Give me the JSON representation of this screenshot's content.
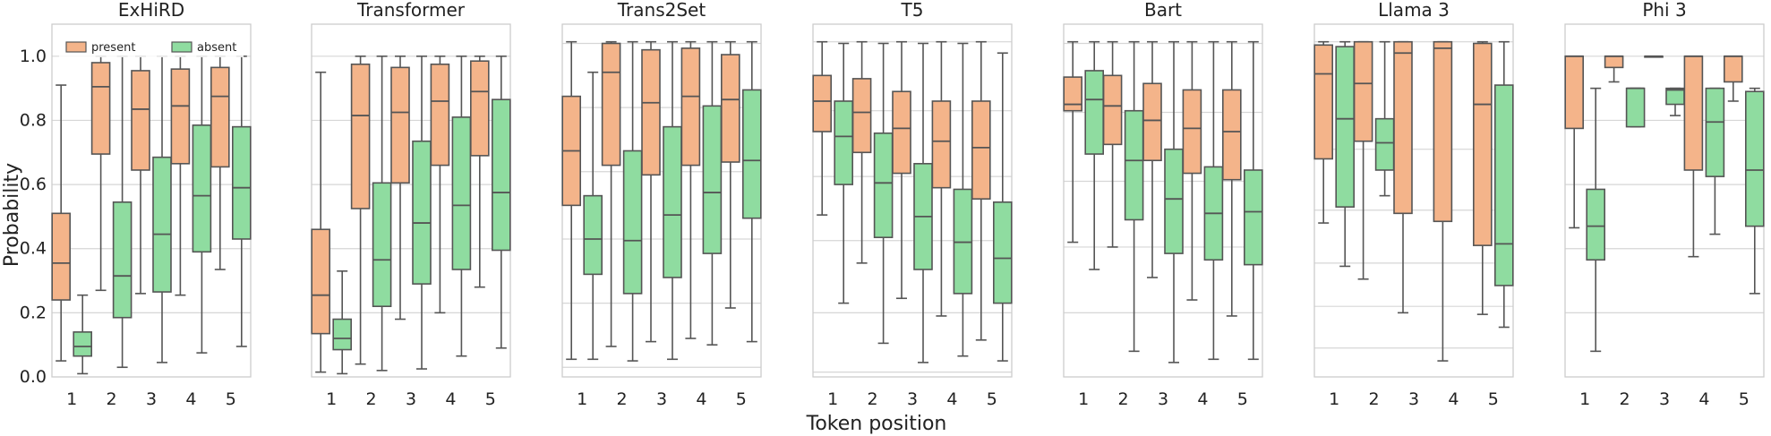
{
  "figure": {
    "xlabel": "Token position",
    "ylabel": "Probability"
  },
  "legend": {
    "placement": "top-left",
    "entries": [
      {
        "label": "present",
        "color": "#f4b48a"
      },
      {
        "label": "absent",
        "color": "#8fdca0"
      }
    ]
  },
  "chart_data": [
    {
      "type": "box",
      "title": "ExHiRD",
      "categories": [
        "1",
        "2",
        "3",
        "4",
        "5"
      ],
      "ylim": [
        0,
        1.1
      ],
      "yticks": [
        "0.0",
        "0.2",
        "0.4",
        "0.6",
        "0.8",
        "1.0"
      ],
      "gridlines": [
        0.2,
        0.4,
        0.6,
        0.8,
        1.0
      ],
      "series": [
        {
          "name": "present",
          "color": "#f4b48a",
          "boxes": [
            {
              "whislo": 0.05,
              "q1": 0.24,
              "med": 0.355,
              "q3": 0.51,
              "whishi": 0.91
            },
            {
              "whislo": 0.27,
              "q1": 0.695,
              "med": 0.905,
              "q3": 0.98,
              "whishi": 1.0
            },
            {
              "whislo": 0.26,
              "q1": 0.645,
              "med": 0.835,
              "q3": 0.955,
              "whishi": 1.0
            },
            {
              "whislo": 0.255,
              "q1": 0.665,
              "med": 0.845,
              "q3": 0.96,
              "whishi": 1.0
            },
            {
              "whislo": 0.335,
              "q1": 0.655,
              "med": 0.875,
              "q3": 0.965,
              "whishi": 1.0
            }
          ]
        },
        {
          "name": "absent",
          "color": "#8fdca0",
          "boxes": [
            {
              "whislo": 0.01,
              "q1": 0.065,
              "med": 0.095,
              "q3": 0.14,
              "whishi": 0.255
            },
            {
              "whislo": 0.03,
              "q1": 0.185,
              "med": 0.315,
              "q3": 0.545,
              "whishi": 1.0
            },
            {
              "whislo": 0.045,
              "q1": 0.265,
              "med": 0.445,
              "q3": 0.685,
              "whishi": 1.0
            },
            {
              "whislo": 0.075,
              "q1": 0.39,
              "med": 0.565,
              "q3": 0.785,
              "whishi": 1.0
            },
            {
              "whislo": 0.095,
              "q1": 0.43,
              "med": 0.59,
              "q3": 0.78,
              "whishi": 1.0
            }
          ]
        }
      ]
    },
    {
      "type": "box",
      "title": "Transformer",
      "categories": [
        "1",
        "2",
        "3",
        "4",
        "5"
      ],
      "ylim": [
        0,
        1.1
      ],
      "gridlines": [
        0.2,
        0.4,
        0.6,
        0.8,
        1.0
      ],
      "series": [
        {
          "name": "present",
          "color": "#f4b48a",
          "boxes": [
            {
              "whislo": 0.015,
              "q1": 0.135,
              "med": 0.255,
              "q3": 0.46,
              "whishi": 0.95
            },
            {
              "whislo": 0.04,
              "q1": 0.525,
              "med": 0.815,
              "q3": 0.975,
              "whishi": 1.0
            },
            {
              "whislo": 0.18,
              "q1": 0.605,
              "med": 0.825,
              "q3": 0.965,
              "whishi": 1.0
            },
            {
              "whislo": 0.2,
              "q1": 0.66,
              "med": 0.86,
              "q3": 0.975,
              "whishi": 1.0
            },
            {
              "whislo": 0.28,
              "q1": 0.69,
              "med": 0.89,
              "q3": 0.985,
              "whishi": 1.0
            }
          ]
        },
        {
          "name": "absent",
          "color": "#8fdca0",
          "boxes": [
            {
              "whislo": 0.01,
              "q1": 0.085,
              "med": 0.12,
              "q3": 0.18,
              "whishi": 0.33
            },
            {
              "whislo": 0.02,
              "q1": 0.22,
              "med": 0.365,
              "q3": 0.605,
              "whishi": 1.0
            },
            {
              "whislo": 0.025,
              "q1": 0.29,
              "med": 0.48,
              "q3": 0.735,
              "whishi": 1.0
            },
            {
              "whislo": 0.065,
              "q1": 0.335,
              "med": 0.535,
              "q3": 0.81,
              "whishi": 1.0
            },
            {
              "whislo": 0.09,
              "q1": 0.395,
              "med": 0.575,
              "q3": 0.865,
              "whishi": 1.0
            }
          ]
        }
      ]
    },
    {
      "type": "box",
      "title": "Trans2Set",
      "categories": [
        "1",
        "2",
        "3",
        "4",
        "5"
      ],
      "ylim": [
        0,
        1.1
      ],
      "gridlines": [
        0.03,
        0.23,
        0.43,
        0.64,
        0.84,
        1.04
      ],
      "series": [
        {
          "name": "present",
          "color": "#f4b48a",
          "boxes": [
            {
              "whislo": 0.055,
              "q1": 0.535,
              "med": 0.705,
              "q3": 0.875,
              "whishi": 1.045
            },
            {
              "whislo": 0.095,
              "q1": 0.66,
              "med": 0.95,
              "q3": 1.04,
              "whishi": 1.045
            },
            {
              "whislo": 0.11,
              "q1": 0.63,
              "med": 0.855,
              "q3": 1.02,
              "whishi": 1.045
            },
            {
              "whislo": 0.12,
              "q1": 0.66,
              "med": 0.875,
              "q3": 1.025,
              "whishi": 1.045
            },
            {
              "whislo": 0.215,
              "q1": 0.67,
              "med": 0.865,
              "q3": 1.005,
              "whishi": 1.045
            }
          ]
        },
        {
          "name": "absent",
          "color": "#8fdca0",
          "boxes": [
            {
              "whislo": 0.055,
              "q1": 0.32,
              "med": 0.43,
              "q3": 0.565,
              "whishi": 0.95
            },
            {
              "whislo": 0.05,
              "q1": 0.26,
              "med": 0.425,
              "q3": 0.705,
              "whishi": 1.045
            },
            {
              "whislo": 0.055,
              "q1": 0.31,
              "med": 0.505,
              "q3": 0.78,
              "whishi": 1.045
            },
            {
              "whislo": 0.1,
              "q1": 0.385,
              "med": 0.575,
              "q3": 0.845,
              "whishi": 1.045
            },
            {
              "whislo": 0.11,
              "q1": 0.495,
              "med": 0.675,
              "q3": 0.895,
              "whishi": 1.045
            }
          ]
        }
      ]
    },
    {
      "type": "box",
      "title": "T5",
      "categories": [
        "1",
        "2",
        "3",
        "4",
        "5"
      ],
      "ylim": [
        0,
        1.1
      ],
      "gridlines": [
        0.015,
        0.2,
        0.425,
        0.625,
        0.83,
        1.045
      ],
      "series": [
        {
          "name": "present",
          "color": "#f4b48a",
          "boxes": [
            {
              "whislo": 0.505,
              "q1": 0.765,
              "med": 0.86,
              "q3": 0.94,
              "whishi": 1.045
            },
            {
              "whislo": 0.355,
              "q1": 0.7,
              "med": 0.825,
              "q3": 0.93,
              "whishi": 1.045
            },
            {
              "whislo": 0.245,
              "q1": 0.635,
              "med": 0.775,
              "q3": 0.89,
              "whishi": 1.045
            },
            {
              "whislo": 0.19,
              "q1": 0.59,
              "med": 0.735,
              "q3": 0.86,
              "whishi": 1.045
            },
            {
              "whislo": 0.115,
              "q1": 0.555,
              "med": 0.715,
              "q3": 0.86,
              "whishi": 1.045
            }
          ]
        },
        {
          "name": "absent",
          "color": "#8fdca0",
          "boxes": [
            {
              "whislo": 0.23,
              "q1": 0.6,
              "med": 0.75,
              "q3": 0.86,
              "whishi": 1.04
            },
            {
              "whislo": 0.105,
              "q1": 0.435,
              "med": 0.605,
              "q3": 0.76,
              "whishi": 1.04
            },
            {
              "whislo": 0.045,
              "q1": 0.335,
              "med": 0.5,
              "q3": 0.665,
              "whishi": 1.04
            },
            {
              "whislo": 0.065,
              "q1": 0.26,
              "med": 0.42,
              "q3": 0.585,
              "whishi": 1.04
            },
            {
              "whislo": 0.05,
              "q1": 0.23,
              "med": 0.37,
              "q3": 0.545,
              "whishi": 1.01
            }
          ]
        }
      ]
    },
    {
      "type": "box",
      "title": "Bart",
      "categories": [
        "1",
        "2",
        "3",
        "4",
        "5"
      ],
      "ylim": [
        0,
        1.1
      ],
      "gridlines": [
        0.2,
        0.405,
        0.61,
        0.825,
        1.04
      ],
      "series": [
        {
          "name": "present",
          "color": "#f4b48a",
          "boxes": [
            {
              "whislo": 0.42,
              "q1": 0.83,
              "med": 0.85,
              "q3": 0.935,
              "whishi": 1.045
            },
            {
              "whislo": 0.405,
              "q1": 0.725,
              "med": 0.845,
              "q3": 0.94,
              "whishi": 1.045
            },
            {
              "whislo": 0.31,
              "q1": 0.675,
              "med": 0.8,
              "q3": 0.915,
              "whishi": 1.045
            },
            {
              "whislo": 0.24,
              "q1": 0.635,
              "med": 0.775,
              "q3": 0.895,
              "whishi": 1.045
            },
            {
              "whislo": 0.19,
              "q1": 0.615,
              "med": 0.765,
              "q3": 0.895,
              "whishi": 1.045
            }
          ]
        },
        {
          "name": "absent",
          "color": "#8fdca0",
          "boxes": [
            {
              "whislo": 0.335,
              "q1": 0.695,
              "med": 0.865,
              "q3": 0.955,
              "whishi": 1.045
            },
            {
              "whislo": 0.08,
              "q1": 0.49,
              "med": 0.675,
              "q3": 0.83,
              "whishi": 1.045
            },
            {
              "whislo": 0.045,
              "q1": 0.385,
              "med": 0.555,
              "q3": 0.71,
              "whishi": 1.045
            },
            {
              "whislo": 0.055,
              "q1": 0.365,
              "med": 0.51,
              "q3": 0.655,
              "whishi": 1.045
            },
            {
              "whislo": 0.055,
              "q1": 0.35,
              "med": 0.515,
              "q3": 0.645,
              "whishi": 1.045
            }
          ]
        }
      ]
    },
    {
      "type": "box",
      "title": "Llama 3",
      "categories": [
        "1",
        "2",
        "3",
        "4",
        "5"
      ],
      "ylim": [
        0,
        1.1
      ],
      "gridlines": [
        0.09,
        0.22,
        0.355,
        0.52,
        0.71,
        1.045
      ],
      "series": [
        {
          "name": "present",
          "color": "#f4b48a",
          "boxes": [
            {
              "whislo": 0.48,
              "q1": 0.68,
              "med": 0.945,
              "q3": 1.035,
              "whishi": 1.045
            },
            {
              "whislo": 0.305,
              "q1": 0.735,
              "med": 0.915,
              "q3": 1.045,
              "whishi": 1.045
            },
            {
              "whislo": 0.2,
              "q1": 0.51,
              "med": 1.01,
              "q3": 1.045,
              "whishi": 1.045
            },
            {
              "whislo": 0.05,
              "q1": 0.485,
              "med": 1.025,
              "q3": 1.045,
              "whishi": 1.045
            },
            {
              "whislo": 0.195,
              "q1": 0.41,
              "med": 0.85,
              "q3": 1.04,
              "whishi": 1.045
            }
          ]
        },
        {
          "name": "absent",
          "color": "#8fdca0",
          "boxes": [
            {
              "whislo": 0.345,
              "q1": 0.53,
              "med": 0.805,
              "q3": 1.03,
              "whishi": 1.045
            },
            {
              "whislo": 0.565,
              "q1": 0.645,
              "med": 0.73,
              "q3": 0.805,
              "whishi": 1.045
            },
            {
              "whislo": 0.155,
              "q1": 0.285,
              "med": 0.415,
              "q3": 0.91,
              "whishi": 1.045
            }
          ]
        }
      ],
      "absent_positions": [
        "1",
        "2",
        "5"
      ]
    },
    {
      "type": "box",
      "title": "Phi 3",
      "categories": [
        "1",
        "2",
        "3",
        "4",
        "5"
      ],
      "ylim": [
        0,
        1.1
      ],
      "gridlines": [
        0.2,
        0.4,
        0.6,
        0.8,
        1.0
      ],
      "series": [
        {
          "name": "present",
          "color": "#f4b48a",
          "boxes": [
            {
              "whislo": 0.465,
              "q1": 0.775,
              "med": 1.0,
              "q3": 1.0,
              "whishi": 1.0
            },
            {
              "whislo": 0.92,
              "q1": 0.965,
              "med": 1.0,
              "q3": 1.0,
              "whishi": 1.0
            },
            {
              "whislo": 1.0,
              "q1": 1.0,
              "med": 1.0,
              "q3": 1.0,
              "whishi": 1.0
            },
            {
              "whislo": 0.375,
              "q1": 0.645,
              "med": 1.0,
              "q3": 1.0,
              "whishi": 1.0
            },
            {
              "whislo": 0.86,
              "q1": 0.92,
              "med": 1.0,
              "q3": 1.0,
              "whishi": 1.0
            }
          ]
        },
        {
          "name": "absent",
          "color": "#8fdca0",
          "boxes": [
            {
              "whislo": 0.08,
              "q1": 0.365,
              "med": 0.47,
              "q3": 0.585,
              "whishi": 0.9
            },
            {
              "whislo": 0.78,
              "q1": 0.78,
              "med": 0.9,
              "q3": 0.9,
              "whishi": 0.9
            },
            {
              "whislo": 0.815,
              "q1": 0.85,
              "med": 0.895,
              "q3": 0.9,
              "whishi": 0.9
            },
            {
              "whislo": 0.445,
              "q1": 0.625,
              "med": 0.795,
              "q3": 0.9,
              "whishi": 0.9
            },
            {
              "whislo": 0.26,
              "q1": 0.47,
              "med": 0.645,
              "q3": 0.89,
              "whishi": 0.9
            }
          ]
        }
      ]
    }
  ]
}
